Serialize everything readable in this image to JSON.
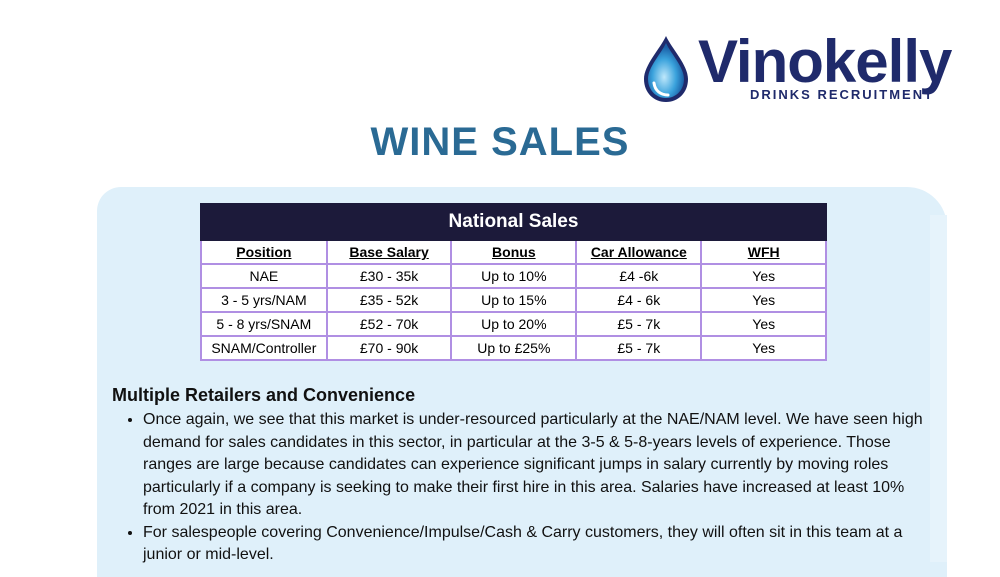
{
  "logo": {
    "brand": "Vinokelly",
    "tagline": "DRINKS RECRUITMENT",
    "icon": "water-drop-icon"
  },
  "title": "WINE SALES",
  "table": {
    "caption": "National Sales",
    "headers": [
      "Position",
      "Base Salary",
      "Bonus",
      "Car Allowance",
      "WFH"
    ],
    "rows": [
      [
        "NAE",
        "£30 - 35k",
        "Up to 10%",
        "£4 -6k",
        "Yes"
      ],
      [
        "3 - 5 yrs/NAM",
        "£35 - 52k",
        "Up to 15%",
        "£4 - 6k",
        "Yes"
      ],
      [
        "5 - 8 yrs/SNAM",
        "£52 - 70k",
        "Up to 20%",
        "£5 - 7k",
        "Yes"
      ],
      [
        "SNAM/Controller",
        "£70 - 90k",
        "Up to £25%",
        "£5 - 7k",
        "Yes"
      ]
    ]
  },
  "section": {
    "heading": "Multiple Retailers and Convenience",
    "bullets": [
      "Once again, we see that this market is under-resourced particularly at the NAE/NAM level. We have seen high demand for sales candidates in this sector, in particular at the 3-5 & 5-8-years levels of experience. Those ranges are large because candidates can experience significant jumps in salary currently by moving roles particularly if a company is seeking to make their first hire in this area. Salaries have increased at least 10% from 2021 in this area.",
      "For salespeople covering Convenience/Impulse/Cash & Carry customers, they will often sit in this team at a junior or mid-level."
    ]
  },
  "colors": {
    "brand_navy": "#1f2a6b",
    "title_blue": "#2a6a94",
    "panel_bg": "#dff0fa",
    "table_header_bg": "#1c1a3a",
    "table_border": "#b08fe3"
  }
}
